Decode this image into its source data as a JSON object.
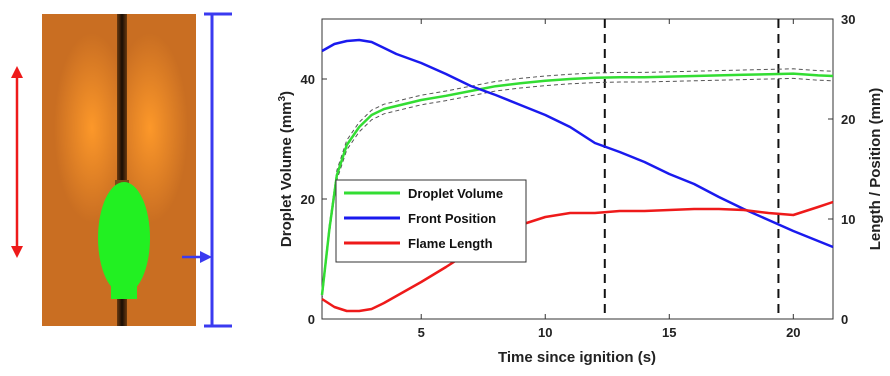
{
  "chart_data": {
    "type": "line",
    "xlabel": "Time since ignition (s)",
    "ylabel_left": "Droplet Volume (mm",
    "ylabel_left_sup": "3",
    "ylabel_left_close": ")",
    "ylabel_right": "Length / Position (mm)",
    "xlim": [
      1,
      21.6
    ],
    "ylim_left": [
      0,
      50
    ],
    "ylim_right": [
      0,
      30
    ],
    "x_ticks": [
      5,
      10,
      15,
      20
    ],
    "x_tick_labels": [
      "5",
      "10",
      "15",
      "20"
    ],
    "y_left_ticks": [
      0,
      20,
      40
    ],
    "y_left_tick_labels": [
      "0",
      "20",
      "40"
    ],
    "y_right_ticks": [
      0,
      10,
      20,
      30
    ],
    "y_right_tick_labels": [
      "0",
      "10",
      "20",
      "30"
    ],
    "vertical_dashed_lines": [
      12.4,
      19.4
    ],
    "legend_position": "middle-left",
    "colors": {
      "droplet_volume": "#33dd33",
      "front_position": "#1a1aee",
      "flame_length": "#ee1a1a",
      "band": "#555555",
      "guide": "#111111"
    },
    "series": [
      {
        "name": "Droplet Volume",
        "axis": "left",
        "x": [
          1.0,
          1.3,
          1.6,
          2.0,
          2.5,
          3.0,
          3.5,
          4.0,
          5.0,
          6.0,
          7.0,
          8.0,
          9.0,
          10.0,
          11.0,
          12.0,
          13.0,
          14.0,
          15.0,
          16.0,
          17.0,
          18.0,
          19.0,
          20.0,
          21.0,
          21.6
        ],
        "values": [
          4,
          15,
          24,
          29,
          32,
          34,
          35,
          35.5,
          36.5,
          37.2,
          38,
          38.8,
          39.3,
          39.7,
          40,
          40.2,
          40.3,
          40.3,
          40.4,
          40.5,
          40.6,
          40.7,
          40.8,
          40.9,
          40.6,
          40.5
        ]
      },
      {
        "name": "Front Position",
        "axis": "right",
        "x": [
          1.0,
          1.5,
          2.0,
          2.5,
          3.0,
          4.0,
          5.0,
          6.0,
          7.0,
          8.0,
          9.0,
          10.0,
          11.0,
          12.0,
          13.0,
          14.0,
          15.0,
          16.0,
          17.0,
          18.0,
          19.0,
          20.0,
          21.0,
          21.6
        ],
        "values": [
          26.8,
          27.5,
          27.8,
          27.9,
          27.7,
          26.5,
          25.6,
          24.5,
          23.3,
          22.4,
          21.4,
          20.4,
          19.2,
          17.6,
          16.7,
          15.7,
          14.5,
          13.5,
          12.2,
          11.0,
          9.9,
          8.8,
          7.8,
          7.2
        ]
      },
      {
        "name": "Flame Length",
        "axis": "right",
        "x": [
          1.0,
          1.5,
          2.0,
          2.5,
          3.0,
          3.5,
          4.0,
          5.0,
          6.0,
          7.0,
          8.0,
          9.0,
          10.0,
          11.0,
          12.0,
          13.0,
          14.0,
          15.0,
          16.0,
          17.0,
          18.0,
          19.0,
          20.0,
          21.0,
          21.6
        ],
        "values": [
          2.0,
          1.2,
          0.8,
          0.8,
          1.0,
          1.6,
          2.3,
          3.7,
          5.2,
          6.8,
          8.2,
          9.4,
          10.2,
          10.6,
          10.6,
          10.8,
          10.8,
          10.9,
          11.0,
          11.0,
          10.9,
          10.6,
          10.4,
          11.2,
          11.7
        ]
      }
    ]
  }
}
